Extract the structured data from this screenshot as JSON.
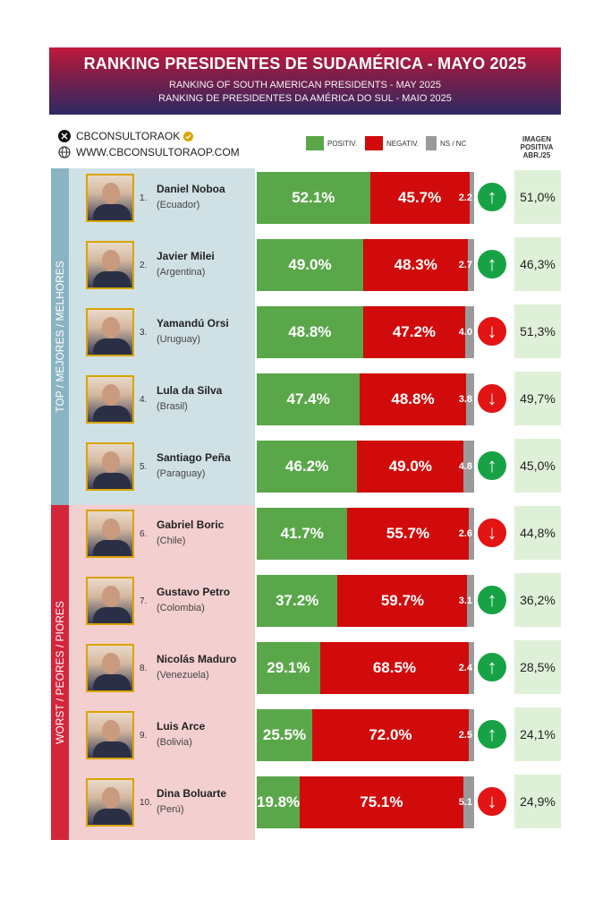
{
  "header": {
    "title": "RANKING PRESIDENTES DE SUDAMÉRICA - MAYO 2025",
    "subtitle_en": "RANKING OF SOUTH AMERICAN PRESIDENTS -  MAY 2025",
    "subtitle_pt": "RANKING DE PRESIDENTES DA AMÉRICA DO SUL - MAIO 2025"
  },
  "source": {
    "handle": "CBCONSULTORAOK",
    "website": "WWW.CBCONSULTORAOP.COM",
    "x_icon": "x-logo-icon",
    "verified_icon": "verified-badge-icon",
    "globe_icon": "globe-icon"
  },
  "legend": {
    "positive": "POSITIV.",
    "negative": "NEGATIV.",
    "nsnc": "NS / NC",
    "image_header_1": "IMAGEN",
    "image_header_2": "POSITIVA",
    "image_header_3": "ABR./25"
  },
  "groups": {
    "top": "TOP / MEJORES / MELHORES",
    "worst": "WORST / PEORES / PIORES"
  },
  "colors": {
    "positive": "#5aa74a",
    "negative": "#d10b0b",
    "nsnc": "#9a9a9a",
    "up_arrow": "#17a345",
    "down_arrow": "#e21414",
    "top_band": "#d0e1e6",
    "worst_band": "#f3cfcf",
    "image_cell": "#dff0d8"
  },
  "chart_data": {
    "type": "bar",
    "orientation": "horizontal-stacked",
    "categories": [
      "Daniel Noboa",
      "Javier Milei",
      "Yamandú Orsi",
      "Lula da Silva",
      "Santiago Peña",
      "Gabriel Boric",
      "Gustavo Petro",
      "Nicolás Maduro",
      "Luis Arce",
      "Dina Boluarte"
    ],
    "series": [
      {
        "name": "POSITIV.",
        "values": [
          52.1,
          49.0,
          48.8,
          47.4,
          46.2,
          41.7,
          37.2,
          29.1,
          25.5,
          19.8
        ]
      },
      {
        "name": "NEGATIV.",
        "values": [
          45.7,
          48.3,
          47.2,
          48.8,
          49.0,
          55.7,
          59.7,
          68.5,
          72.0,
          75.1
        ]
      },
      {
        "name": "NS / NC",
        "values": [
          2.2,
          2.7,
          4.0,
          3.8,
          4.8,
          2.6,
          3.1,
          2.4,
          2.5,
          5.1
        ]
      }
    ],
    "title": "RANKING PRESIDENTES DE SUDAMÉRICA - MAYO 2025",
    "xlim": [
      0,
      100
    ]
  },
  "presidents": [
    {
      "rank": "1.",
      "name": "Daniel Noboa",
      "country": "(Ecuador)",
      "pos": 52.1,
      "neg": 45.7,
      "ns": 2.2,
      "pos_label": "52.1%",
      "neg_label": "45.7%",
      "ns_label": "2.2",
      "trend": "up",
      "image": "51,0%"
    },
    {
      "rank": "2.",
      "name": "Javier Milei",
      "country": "(Argentina)",
      "pos": 49.0,
      "neg": 48.3,
      "ns": 2.7,
      "pos_label": "49.0%",
      "neg_label": "48.3%",
      "ns_label": "2.7",
      "trend": "up",
      "image": "46,3%"
    },
    {
      "rank": "3.",
      "name": "Yamandú Orsi",
      "country": "(Uruguay)",
      "pos": 48.8,
      "neg": 47.2,
      "ns": 4.0,
      "pos_label": "48.8%",
      "neg_label": "47.2%",
      "ns_label": "4.0",
      "trend": "down",
      "image": "51,3%"
    },
    {
      "rank": "4.",
      "name": "Lula da Silva",
      "country": "(Brasil)",
      "pos": 47.4,
      "neg": 48.8,
      "ns": 3.8,
      "pos_label": "47.4%",
      "neg_label": "48.8%",
      "ns_label": "3.8",
      "trend": "down",
      "image": "49,7%"
    },
    {
      "rank": "5.",
      "name": "Santiago Peña",
      "country": "(Paraguay)",
      "pos": 46.2,
      "neg": 49.0,
      "ns": 4.8,
      "pos_label": "46.2%",
      "neg_label": "49.0%",
      "ns_label": "4.8",
      "trend": "up",
      "image": "45,0%"
    },
    {
      "rank": "6.",
      "name": "Gabriel Boric",
      "country": "(Chile)",
      "pos": 41.7,
      "neg": 55.7,
      "ns": 2.6,
      "pos_label": "41.7%",
      "neg_label": "55.7%",
      "ns_label": "2.6",
      "trend": "down",
      "image": "44,8%"
    },
    {
      "rank": "7.",
      "name": "Gustavo Petro",
      "country": "(Colombia)",
      "pos": 37.2,
      "neg": 59.7,
      "ns": 3.1,
      "pos_label": "37.2%",
      "neg_label": "59.7%",
      "ns_label": "3.1",
      "trend": "up",
      "image": "36,2%"
    },
    {
      "rank": "8.",
      "name": "Nicolás Maduro",
      "country": "(Venezuela)",
      "pos": 29.1,
      "neg": 68.5,
      "ns": 2.4,
      "pos_label": "29.1%",
      "neg_label": "68.5%",
      "ns_label": "2.4",
      "trend": "up",
      "image": "28,5%"
    },
    {
      "rank": "9.",
      "name": "Luis Arce",
      "country": "(Bolivia)",
      "pos": 25.5,
      "neg": 72.0,
      "ns": 2.5,
      "pos_label": "25.5%",
      "neg_label": "72.0%",
      "ns_label": "2.5",
      "trend": "up",
      "image": "24,1%"
    },
    {
      "rank": "10.",
      "name": "Dina Boluarte",
      "country": "(Perú)",
      "pos": 19.8,
      "neg": 75.1,
      "ns": 5.1,
      "pos_label": "19.8%",
      "neg_label": "75.1%",
      "ns_label": "5.1",
      "trend": "down",
      "image": "24,9%"
    }
  ]
}
